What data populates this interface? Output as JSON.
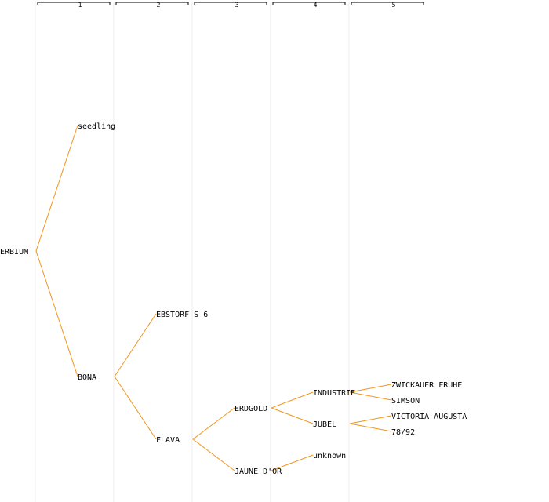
{
  "generations": [
    "1",
    "2",
    "3",
    "4",
    "5"
  ],
  "root": {
    "name": "ERBIUM",
    "children": [
      {
        "name": "seedling"
      },
      {
        "name": "BONA",
        "children": [
          {
            "name": "EBSTORF S 6"
          },
          {
            "name": "FLAVA",
            "children": [
              {
                "name": "ERDGOLD",
                "children": [
                  {
                    "name": "INDUSTRIE",
                    "children": [
                      {
                        "name": "ZWICKAUER FRUHE"
                      },
                      {
                        "name": "SIMSON"
                      }
                    ]
                  },
                  {
                    "name": "JUBEL",
                    "children": [
                      {
                        "name": "VICTORIA AUGUSTA"
                      },
                      {
                        "name": "78/92"
                      }
                    ]
                  }
                ]
              },
              {
                "name": "JAUNE D'OR",
                "children": [
                  {
                    "name": "unknown"
                  }
                ]
              }
            ]
          }
        ]
      }
    ]
  },
  "colors": {
    "edge": "#f0961e",
    "column_line": "#ececec",
    "background": "#ffffff"
  }
}
